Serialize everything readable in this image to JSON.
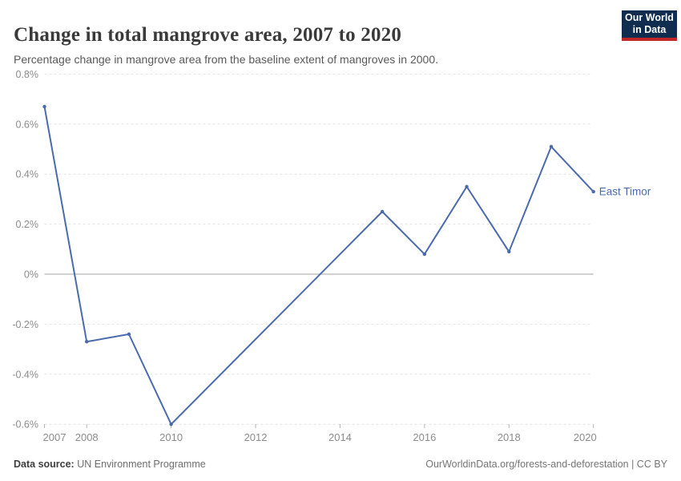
{
  "header": {
    "title": "Change in total mangrove area, 2007 to 2020",
    "subtitle": "Percentage change in mangrove area from the baseline extent of mangroves in 2000.",
    "logo": {
      "line1": "Our World",
      "line2": "in Data"
    }
  },
  "chart_data": {
    "type": "line",
    "title": "Change in total mangrove area, 2007 to 2020",
    "subtitle": "Percentage change in mangrove area from the baseline extent of mangroves in 2000.",
    "series": [
      {
        "name": "East Timor",
        "x": [
          2007,
          2008,
          2009,
          2010,
          2015,
          2016,
          2017,
          2018,
          2019,
          2020
        ],
        "values": [
          0.67,
          -0.27,
          -0.24,
          -0.6,
          0.25,
          0.08,
          0.35,
          0.09,
          0.51,
          0.33
        ],
        "unit": "%"
      }
    ],
    "xlim": [
      2007,
      2020
    ],
    "ylim": [
      -0.6,
      0.8
    ],
    "x_ticks": [
      2007,
      2008,
      2010,
      2012,
      2014,
      2016,
      2018,
      2020
    ],
    "x_tick_labels": [
      "2007",
      "2008",
      "2010",
      "2012",
      "2014",
      "2016",
      "2018",
      "2020"
    ],
    "y_ticks": [
      0.8,
      0.6,
      0.4,
      0.2,
      0,
      -0.2,
      -0.4,
      -0.6
    ],
    "y_tick_labels": [
      "0.8%",
      "0.6%",
      "0.4%",
      "0.2%",
      "0%",
      "-0.2%",
      "-0.4%",
      "-0.6%"
    ],
    "grid": "horizontal-dashed",
    "zero_line": true,
    "legend": "series-end-label",
    "markers": true
  },
  "footer": {
    "source_label": "Data source:",
    "source_value": "UN Environment Programme",
    "citation": "OurWorldinData.org/forests-and-deforestation | CC BY"
  },
  "colors": {
    "series": "#4b6bad",
    "gridline": "#e2e2e2",
    "zero_line": "#a3a3a3",
    "tick_label": "#8c8c8c",
    "tick_mark": "#b3b3b3",
    "title": "#3a3a3a",
    "subtitle": "#595959",
    "logo_background": "#102d50",
    "logo_accent": "#bf2626"
  }
}
